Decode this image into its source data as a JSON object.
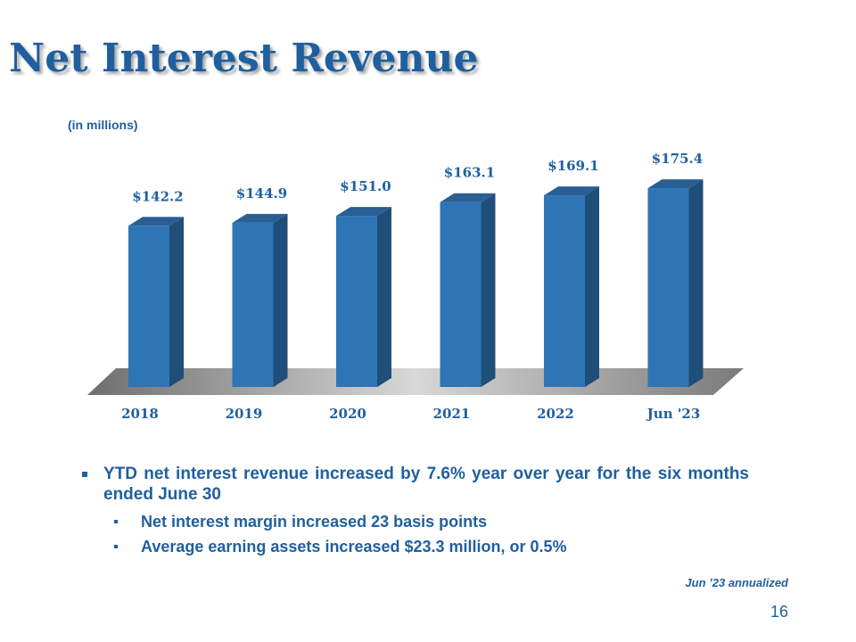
{
  "slide": {
    "title": "Net Interest Revenue",
    "units": "(in millions)",
    "footnote": "Jun ’23 annualized",
    "page_number": "16"
  },
  "bullets": {
    "main": "YTD net interest revenue increased by 7.6% year over year for the six months ended June 30",
    "sub": [
      "Net interest margin increased 23 basis points",
      "Average earning assets increased $23.3 million,  or 0.5%"
    ]
  },
  "colors": {
    "brand": "#1f5f9f",
    "bar_front": "#2e75b6",
    "bar_side": "#1f4e79",
    "bar_top": "#2a5f93"
  },
  "chart_data": {
    "type": "bar",
    "categories": [
      "2018",
      "2019",
      "2020",
      "2021",
      "2022",
      "Jun '23"
    ],
    "values": [
      142.2,
      144.9,
      151.0,
      163.1,
      169.1,
      175.4
    ],
    "data_labels": [
      "$142.2",
      "$144.9",
      "$151.0",
      "$163.1",
      "$169.1",
      "$175.4"
    ],
    "title": "",
    "xlabel": "",
    "ylabel": "",
    "ylim": [
      0,
      200
    ],
    "grid": false,
    "legend": "none"
  }
}
